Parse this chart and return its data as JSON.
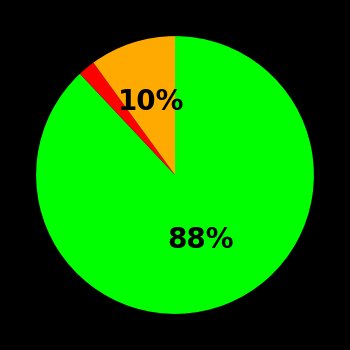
{
  "slices": [
    88,
    2,
    10
  ],
  "colors": [
    "#00ff00",
    "#ff0000",
    "#ffaa00"
  ],
  "labels": [
    "88%",
    "",
    "10%"
  ],
  "background_color": "#000000",
  "startangle": 90,
  "figsize": [
    3.5,
    3.5
  ],
  "dpi": 100,
  "label_fontsize": 20,
  "label_fontweight": "bold",
  "green_label_r": 0.5,
  "yellow_label_r": 0.55
}
